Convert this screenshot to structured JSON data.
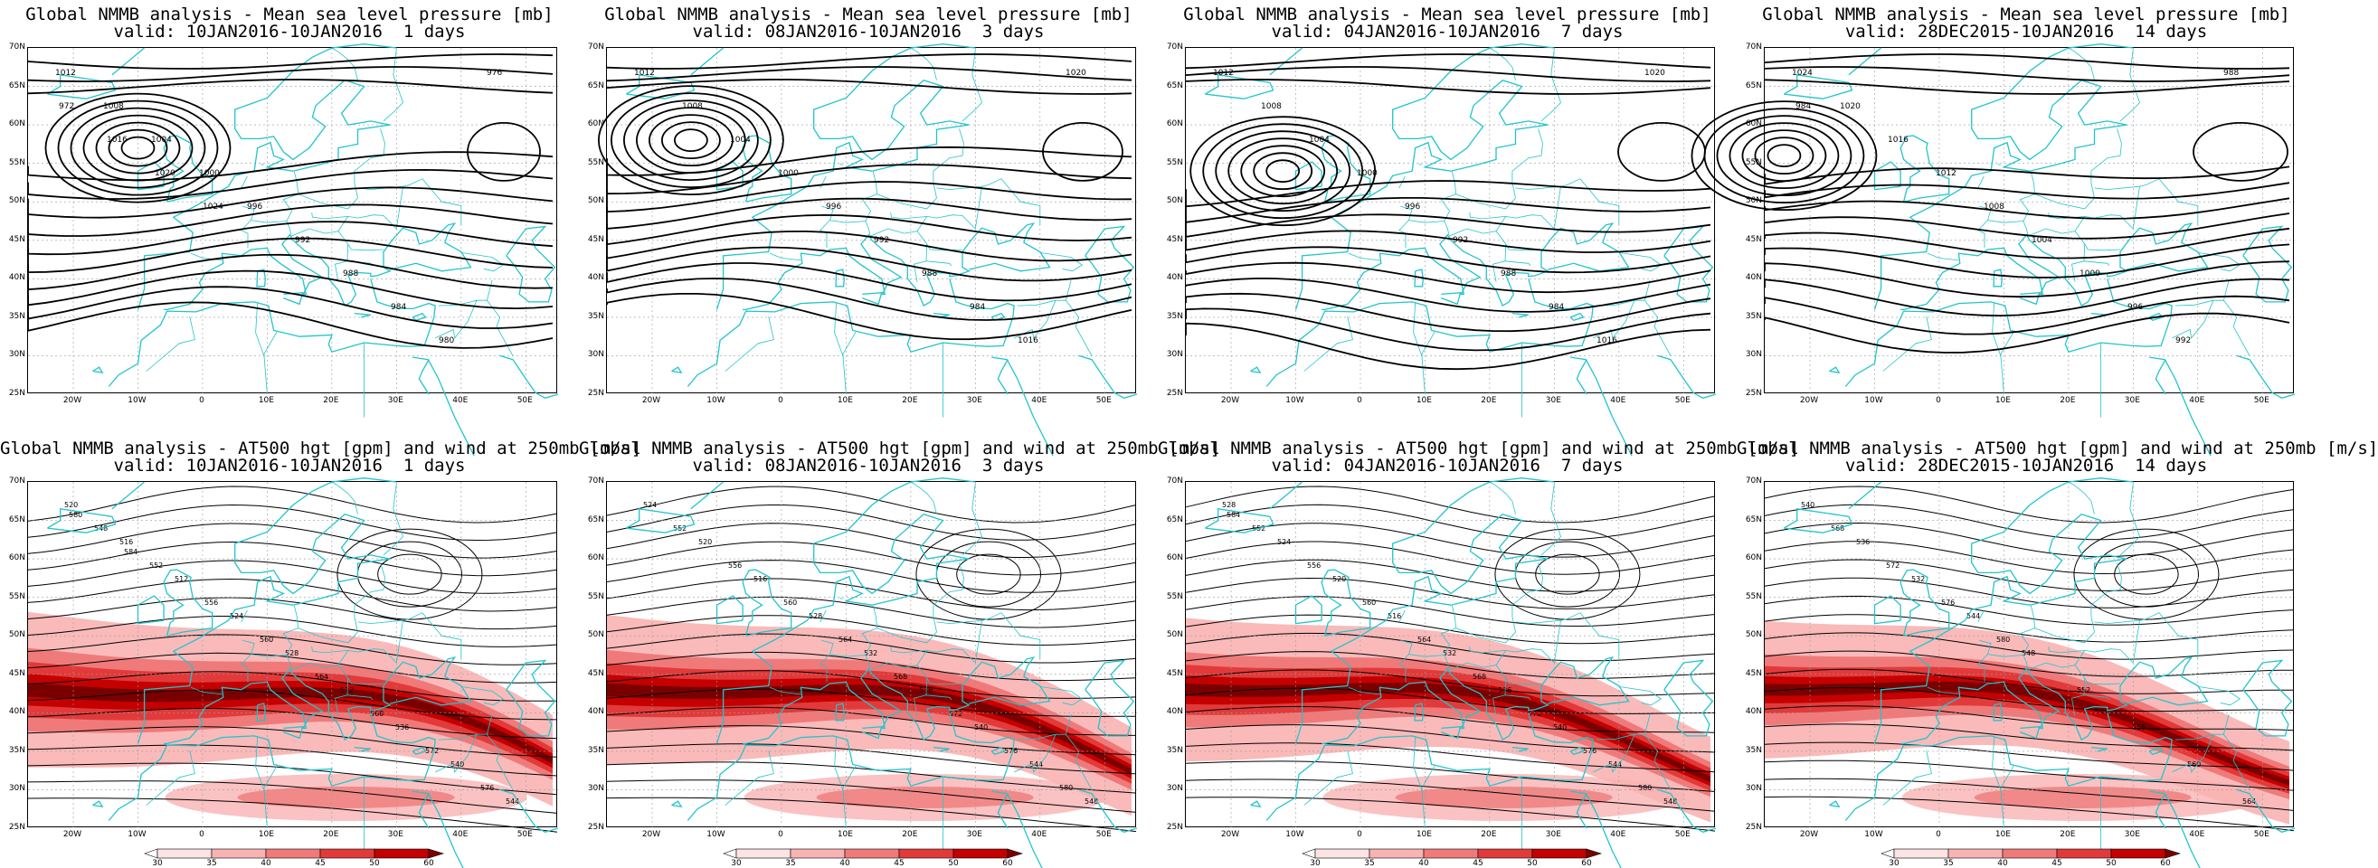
{
  "panels": [
    {
      "id": "mslp-1",
      "title": "Global NMMB analysis - Mean sea level pressure [mb]",
      "subtitle": "valid: 10JAN2016-10JAN2016  1 days",
      "type": "mslp",
      "low_center": [
        -10,
        57
      ],
      "isobars": [
        "1012",
        "1008",
        "1004",
        "1000",
        "996",
        "992",
        "988",
        "984",
        "980",
        "976",
        "972",
        "1016",
        "1020",
        "1024"
      ]
    },
    {
      "id": "mslp-3",
      "title": "Global NMMB analysis - Mean sea level pressure [mb]",
      "subtitle": "valid: 08JAN2016-10JAN2016  3 days",
      "type": "mslp",
      "low_center": [
        -14,
        58
      ],
      "isobars": [
        "1012",
        "1008",
        "1004",
        "1000",
        "996",
        "992",
        "988",
        "984",
        "1016",
        "1020"
      ]
    },
    {
      "id": "mslp-7",
      "title": "Global NMMB analysis - Mean sea level pressure [mb]",
      "subtitle": "valid: 04JAN2016-10JAN2016  7 days",
      "type": "mslp",
      "low_center": [
        -12,
        54
      ],
      "isobars": [
        "1012",
        "1008",
        "1004",
        "1000",
        "996",
        "992",
        "988",
        "984",
        "1016",
        "1020"
      ]
    },
    {
      "id": "mslp-14",
      "title": "Global NMMB analysis - Mean sea level pressure [mb]",
      "subtitle": "valid: 28DEC2015-10JAN2016  14 days",
      "type": "mslp",
      "low_center": [
        -24,
        56
      ],
      "isobars": [
        "1024",
        "1020",
        "1016",
        "1012",
        "1008",
        "1004",
        "1000",
        "996",
        "992",
        "988",
        "984"
      ]
    },
    {
      "id": "z500-1",
      "title": "Global NMMB analysis - AT500 hgt [gpm] and wind at 250mb [m/s]",
      "subtitle": "valid: 10JAN2016-10JAN2016  1 days",
      "type": "z500",
      "jet_strength": 1.0,
      "contours": [
        "520",
        "516",
        "512",
        "524",
        "528",
        "532",
        "536",
        "540",
        "544",
        "548",
        "552",
        "556",
        "560",
        "564",
        "568",
        "572",
        "576",
        "580",
        "584"
      ]
    },
    {
      "id": "z500-3",
      "title": "Global NMMB analysis - AT500 hgt [gpm] and wind at 250mb [m/s]",
      "subtitle": "valid: 08JAN2016-10JAN2016  3 days",
      "type": "z500",
      "jet_strength": 0.95,
      "contours": [
        "524",
        "520",
        "516",
        "528",
        "532",
        "536",
        "540",
        "544",
        "548",
        "552",
        "556",
        "560",
        "564",
        "568",
        "572",
        "576",
        "580"
      ]
    },
    {
      "id": "z500-7",
      "title": "Global NMMB analysis - AT500 hgt [gpm] and wind at 250mb [m/s]",
      "subtitle": "valid: 04JAN2016-10JAN2016  7 days",
      "type": "z500",
      "jet_strength": 0.9,
      "contours": [
        "528",
        "524",
        "520",
        "516",
        "532",
        "536",
        "540",
        "544",
        "548",
        "552",
        "556",
        "560",
        "564",
        "568",
        "572",
        "576",
        "580",
        "584"
      ]
    },
    {
      "id": "z500-14",
      "title": "Global NMMB analysis - AT500 hgt [gpm] and wind at 250mb [m/s]",
      "subtitle": "valid: 28DEC2015-10JAN2016  14 days",
      "type": "z500",
      "jet_strength": 0.85,
      "contours": [
        "540",
        "536",
        "532",
        "544",
        "548",
        "552",
        "556",
        "560",
        "564",
        "568",
        "572",
        "576",
        "580"
      ]
    }
  ],
  "axes": {
    "lat_labels": [
      "70N",
      "65N",
      "60N",
      "55N",
      "50N",
      "45N",
      "40N",
      "35N",
      "30N",
      "25N"
    ],
    "lon_labels": [
      "20W",
      "10W",
      "0",
      "10E",
      "20E",
      "30E",
      "40E",
      "50E"
    ]
  },
  "colorbar": {
    "ticks": [
      "30",
      "35",
      "40",
      "45",
      "50",
      "60"
    ],
    "colors": [
      "#ffffff",
      "#fde4e4",
      "#f9b3b3",
      "#f07a7a",
      "#e23a3a",
      "#c40000",
      "#7a0000"
    ]
  },
  "colors": {
    "contour": "#000000",
    "coast": "#22c4cc",
    "grid": "#9a9a9a"
  }
}
